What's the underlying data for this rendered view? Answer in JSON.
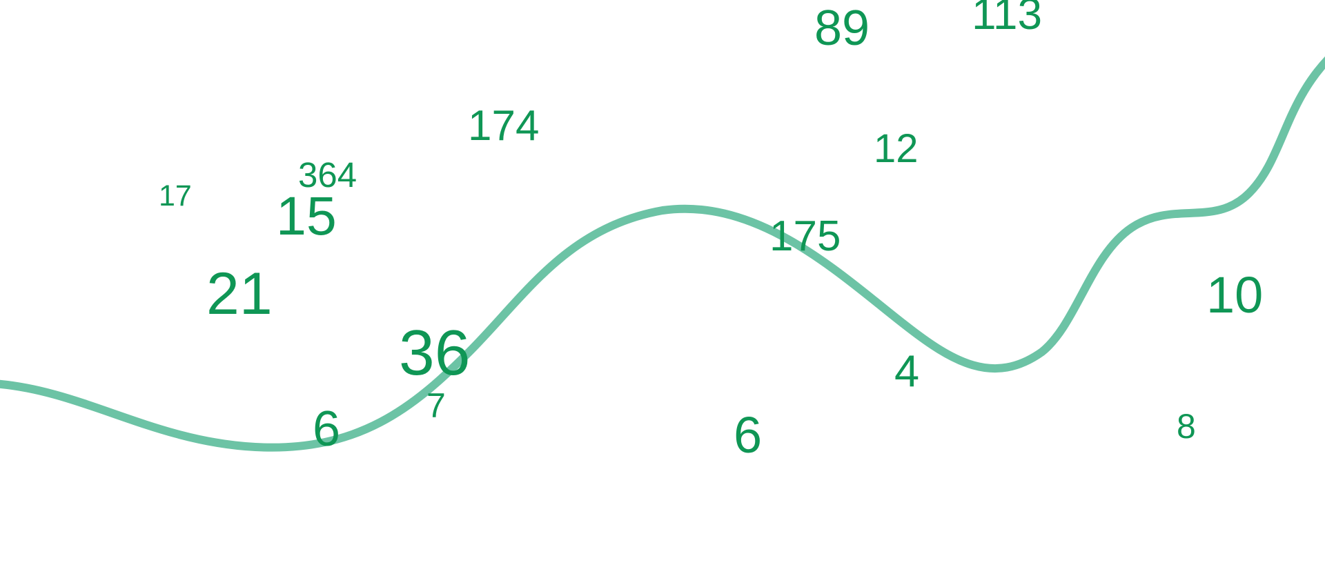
{
  "colors": {
    "number": "#0f9655",
    "curve": "#6cc3a5",
    "background": "#ffffff"
  },
  "numbers": [
    "89",
    "113",
    "174",
    "364",
    "12",
    "17",
    "15",
    "175",
    "21",
    "10",
    "36",
    "4",
    "7",
    "6",
    "6",
    "8"
  ]
}
